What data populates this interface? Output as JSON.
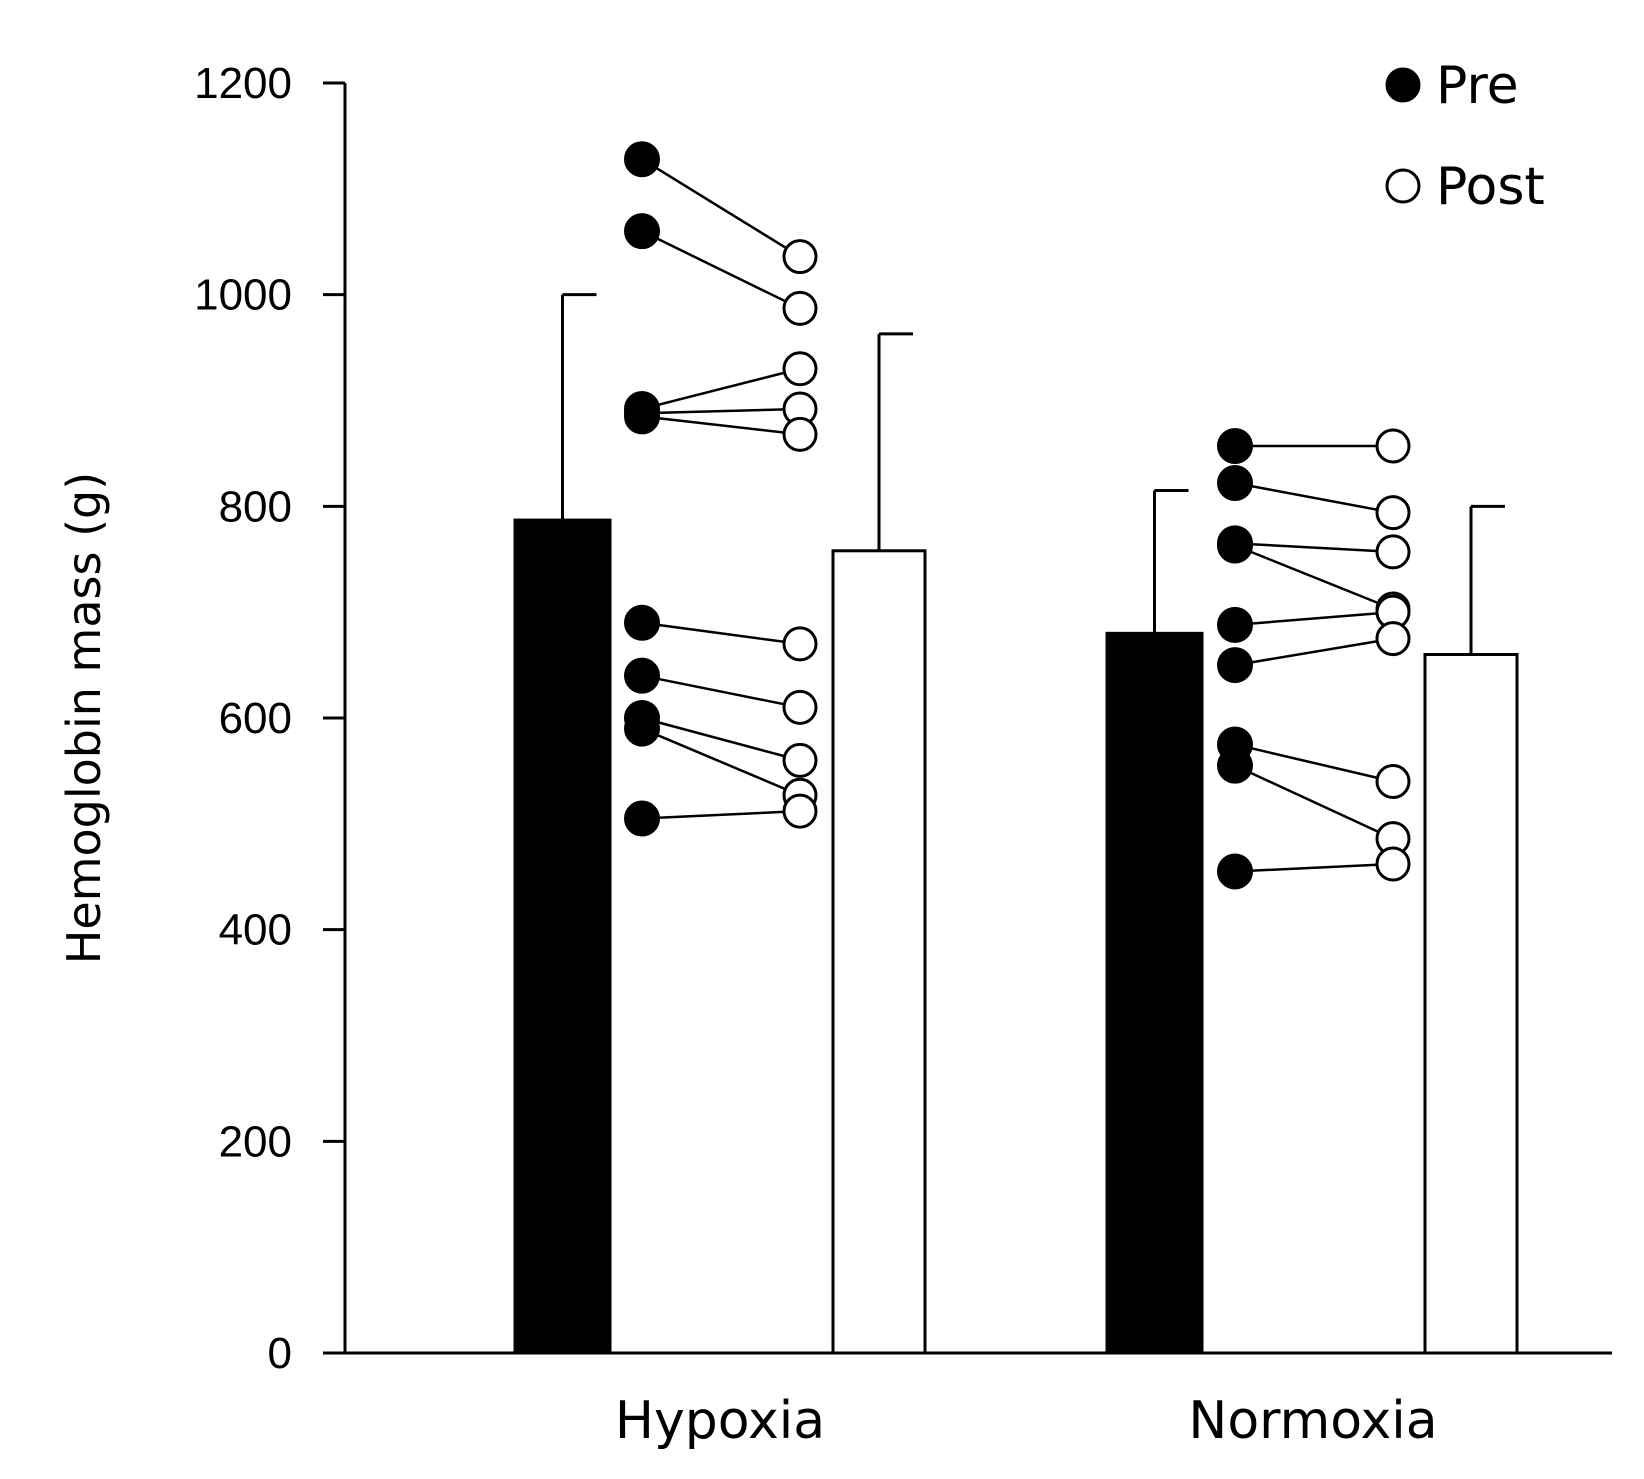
{
  "chart_data": {
    "type": "bar",
    "title": "",
    "xlabel": "",
    "ylabel": "Hemoglobin mass (g)",
    "ylim": [
      0,
      1200
    ],
    "yticks": [
      0,
      200,
      400,
      600,
      800,
      1000,
      1200
    ],
    "ytick_labels": [
      "0",
      "200",
      "400",
      "600",
      "800",
      "1000",
      "1200"
    ],
    "grid": false,
    "legend": {
      "position": "top-right",
      "entries": [
        {
          "label": "Pre",
          "marker": "filled-circle",
          "color": "#000000"
        },
        {
          "label": "Post",
          "marker": "open-circle",
          "color": "#ffffff"
        }
      ]
    },
    "categories": [
      "Hypoxia",
      "Normoxia"
    ],
    "series": [
      {
        "name": "Pre",
        "values": [
          787,
          680
        ],
        "error": [
          213,
          135
        ],
        "fill": "#000000"
      },
      {
        "name": "Post",
        "values": [
          758,
          660
        ],
        "error": [
          205,
          140
        ],
        "fill": "#ffffff"
      }
    ],
    "individual": [
      {
        "group": "Hypoxia",
        "pairs": [
          {
            "pre": 1128,
            "post": 1036
          },
          {
            "pre": 1060,
            "post": 987
          },
          {
            "pre": 892,
            "post": 930
          },
          {
            "pre": 888,
            "post": 892
          },
          {
            "pre": 885,
            "post": 868
          },
          {
            "pre": 690,
            "post": 670
          },
          {
            "pre": 640,
            "post": 610
          },
          {
            "pre": 600,
            "post": 560
          },
          {
            "pre": 590,
            "post": 527
          },
          {
            "pre": 505,
            "post": 512
          }
        ]
      },
      {
        "group": "Normoxia",
        "pairs": [
          {
            "pre": 857,
            "post": 857
          },
          {
            "pre": 822,
            "post": 794
          },
          {
            "pre": 765,
            "post": 757
          },
          {
            "pre": 763,
            "post": 703
          },
          {
            "pre": 688,
            "post": 700
          },
          {
            "pre": 650,
            "post": 675
          },
          {
            "pre": 575,
            "post": 540
          },
          {
            "pre": 555,
            "post": 486
          },
          {
            "pre": 455,
            "post": 462
          }
        ]
      }
    ]
  }
}
